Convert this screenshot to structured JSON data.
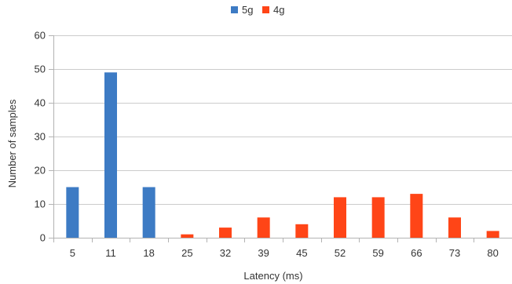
{
  "chart_data": {
    "type": "bar",
    "categories": [
      "5",
      "11",
      "18",
      "25",
      "32",
      "39",
      "45",
      "52",
      "59",
      "66",
      "73",
      "80"
    ],
    "series": [
      {
        "name": "5g",
        "color": "#3d7bc4",
        "values": [
          15,
          49,
          15,
          0,
          0,
          0,
          0,
          0,
          0,
          0,
          0,
          0
        ]
      },
      {
        "name": "4g",
        "color": "#ff4517",
        "values": [
          0,
          0,
          0,
          1,
          3,
          6,
          4,
          12,
          12,
          13,
          6,
          2
        ]
      }
    ],
    "xlabel": "Latency (ms)",
    "ylabel": "Number of samples",
    "ylim": [
      0,
      60
    ],
    "yticks": [
      0,
      10,
      20,
      30,
      40,
      50,
      60
    ],
    "grid": true,
    "legend_position": "top-center"
  }
}
